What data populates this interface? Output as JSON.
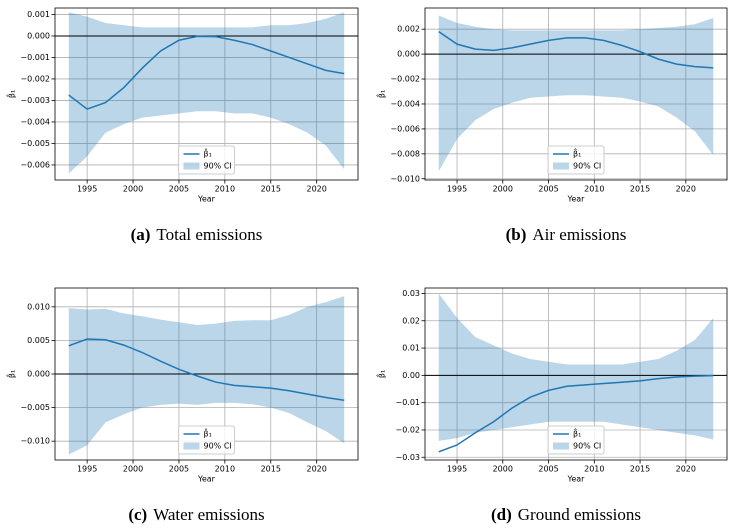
{
  "chart_data": [
    {
      "type": "line",
      "label": "(a)",
      "caption": "Total emissions",
      "xlabel": "Year",
      "ylabel": "β̂₁",
      "x": [
        1993,
        1995,
        1997,
        1999,
        2001,
        2003,
        2005,
        2007,
        2009,
        2011,
        2013,
        2015,
        2017,
        2019,
        2021,
        2023
      ],
      "xlim": [
        1991.5,
        2024.5
      ],
      "xticks": [
        1995,
        2000,
        2005,
        2010,
        2015,
        2020
      ],
      "ylim": [
        -0.0067,
        0.0013
      ],
      "yticks": [
        {
          "value": -0.006,
          "label": "−0.006"
        },
        {
          "value": -0.005,
          "label": "−0.005"
        },
        {
          "value": -0.004,
          "label": "−0.004"
        },
        {
          "value": -0.003,
          "label": "−0.003"
        },
        {
          "value": -0.002,
          "label": "−0.002"
        },
        {
          "value": -0.001,
          "label": "−0.001"
        },
        {
          "value": 0,
          "label": "0.000"
        },
        {
          "value": 0.001,
          "label": "0.001"
        }
      ],
      "grid": true,
      "reference_line": 0,
      "legend": "lower center",
      "series": [
        {
          "name": "β̂₁",
          "color": "#1f77b4",
          "values": [
            -0.00275,
            -0.0034,
            -0.0031,
            -0.0024,
            -0.0015,
            -0.0007,
            -0.0002,
            -2e-05,
            -3e-05,
            -0.0002,
            -0.0004,
            -0.0007,
            -0.001,
            -0.0013,
            -0.0016,
            -0.00175
          ]
        },
        {
          "name": "90% CI",
          "color": "#1f77b4",
          "type": "band",
          "upper": [
            0.0011,
            0.0009,
            0.0006,
            0.0005,
            0.0004,
            0.0004,
            0.0004,
            0.0004,
            0.0004,
            0.0004,
            0.0004,
            0.0005,
            0.0005,
            0.0006,
            0.0008,
            0.0011
          ],
          "lower": [
            -0.0064,
            -0.0056,
            -0.0045,
            -0.0041,
            -0.0038,
            -0.0037,
            -0.0036,
            -0.0035,
            -0.0035,
            -0.0036,
            -0.0036,
            -0.0038,
            -0.0041,
            -0.0045,
            -0.0051,
            -0.0062
          ]
        }
      ]
    },
    {
      "type": "line",
      "label": "(b)",
      "caption": "Air emissions",
      "xlabel": "Year",
      "ylabel": "β̂₁",
      "x": [
        1993,
        1995,
        1997,
        1999,
        2001,
        2003,
        2005,
        2007,
        2009,
        2011,
        2013,
        2015,
        2017,
        2019,
        2021,
        2023
      ],
      "xlim": [
        1991.5,
        2024.5
      ],
      "xticks": [
        1995,
        2000,
        2005,
        2010,
        2015,
        2020
      ],
      "ylim": [
        -0.0101,
        0.0037
      ],
      "yticks": [
        {
          "value": -0.01,
          "label": "−0.010"
        },
        {
          "value": -0.008,
          "label": "−0.008"
        },
        {
          "value": -0.006,
          "label": "−0.006"
        },
        {
          "value": -0.004,
          "label": "−0.004"
        },
        {
          "value": -0.002,
          "label": "−0.002"
        },
        {
          "value": 0,
          "label": "0.000"
        },
        {
          "value": 0.002,
          "label": "0.002"
        }
      ],
      "grid": true,
      "reference_line": 0,
      "legend": "lower center",
      "series": [
        {
          "name": "β̂₁",
          "color": "#1f77b4",
          "values": [
            0.0018,
            0.0008,
            0.0004,
            0.0003,
            0.0005,
            0.0008,
            0.0011,
            0.0013,
            0.0013,
            0.0011,
            0.0007,
            0.0002,
            -0.0004,
            -0.0008,
            -0.001,
            -0.0011
          ]
        },
        {
          "name": "90% CI",
          "color": "#1f77b4",
          "type": "band",
          "upper": [
            0.0031,
            0.0025,
            0.0022,
            0.002,
            0.0019,
            0.0019,
            0.0019,
            0.0019,
            0.0019,
            0.0019,
            0.0019,
            0.002,
            0.0021,
            0.0022,
            0.0024,
            0.0029
          ],
          "lower": [
            -0.0094,
            -0.0068,
            -0.0053,
            -0.0044,
            -0.0039,
            -0.0035,
            -0.0034,
            -0.0033,
            -0.0033,
            -0.0034,
            -0.0035,
            -0.0038,
            -0.0042,
            -0.0051,
            -0.0062,
            -0.0081
          ]
        }
      ]
    },
    {
      "type": "line",
      "label": "(c)",
      "caption": "Water emissions",
      "xlabel": "Year",
      "ylabel": "β̂₁",
      "x": [
        1993,
        1995,
        1997,
        1999,
        2001,
        2003,
        2005,
        2007,
        2009,
        2011,
        2013,
        2015,
        2017,
        2019,
        2021,
        2023
      ],
      "xlim": [
        1991.5,
        2024.5
      ],
      "xticks": [
        1995,
        2000,
        2005,
        2010,
        2015,
        2020
      ],
      "ylim": [
        -0.0128,
        0.0128
      ],
      "yticks": [
        {
          "value": -0.01,
          "label": "−0.010"
        },
        {
          "value": -0.005,
          "label": "−0.005"
        },
        {
          "value": 0,
          "label": "0.000"
        },
        {
          "value": 0.005,
          "label": "0.005"
        },
        {
          "value": 0.01,
          "label": "0.010"
        }
      ],
      "grid": true,
      "reference_line": 0,
      "legend": "lower center",
      "series": [
        {
          "name": "β̂₁",
          "color": "#1f77b4",
          "values": [
            0.0042,
            0.0052,
            0.0051,
            0.0043,
            0.0032,
            0.0019,
            0.0007,
            -0.0003,
            -0.0012,
            -0.0017,
            -0.0019,
            -0.0021,
            -0.0025,
            -0.003,
            -0.0035,
            -0.0039
          ]
        },
        {
          "name": "90% CI",
          "color": "#1f77b4",
          "type": "band",
          "upper": [
            0.0098,
            0.0096,
            0.0097,
            0.009,
            0.0086,
            0.0081,
            0.0077,
            0.0073,
            0.0075,
            0.0079,
            0.008,
            0.008,
            0.0088,
            0.01,
            0.0107,
            0.0116
          ],
          "lower": [
            -0.012,
            -0.0106,
            -0.0072,
            -0.006,
            -0.005,
            -0.0046,
            -0.0044,
            -0.0046,
            -0.0043,
            -0.0043,
            -0.0045,
            -0.005,
            -0.0058,
            -0.0072,
            -0.0085,
            -0.0103
          ]
        }
      ]
    },
    {
      "type": "line",
      "label": "(d)",
      "caption": "Ground emissions",
      "xlabel": "Year",
      "ylabel": "β̂₁",
      "x": [
        1993,
        1995,
        1997,
        1999,
        2001,
        2003,
        2005,
        2007,
        2009,
        2011,
        2013,
        2015,
        2017,
        2019,
        2021,
        2023
      ],
      "xlim": [
        1991.5,
        2024.5
      ],
      "xticks": [
        1995,
        2000,
        2005,
        2010,
        2015,
        2020
      ],
      "ylim": [
        -0.031,
        0.032
      ],
      "yticks": [
        {
          "value": -0.03,
          "label": "−0.03"
        },
        {
          "value": -0.02,
          "label": "−0.02"
        },
        {
          "value": -0.01,
          "label": "−0.01"
        },
        {
          "value": 0,
          "label": "0.00"
        },
        {
          "value": 0.01,
          "label": "0.01"
        },
        {
          "value": 0.02,
          "label": "0.02"
        },
        {
          "value": 0.03,
          "label": "0.03"
        }
      ],
      "grid": true,
      "reference_line": 0,
      "legend": "lower center",
      "series": [
        {
          "name": "β̂₁",
          "color": "#1f77b4",
          "values": [
            -0.028,
            -0.0255,
            -0.021,
            -0.017,
            -0.012,
            -0.008,
            -0.0055,
            -0.004,
            -0.0035,
            -0.003,
            -0.0025,
            -0.002,
            -0.0012,
            -0.0006,
            -0.0003,
            -0.0001
          ]
        },
        {
          "name": "90% CI",
          "color": "#1f77b4",
          "type": "band",
          "upper": [
            0.03,
            0.021,
            0.014,
            0.011,
            0.008,
            0.006,
            0.005,
            0.004,
            0.004,
            0.004,
            0.004,
            0.005,
            0.006,
            0.009,
            0.013,
            0.021
          ],
          "lower": [
            -0.024,
            -0.023,
            -0.021,
            -0.02,
            -0.019,
            -0.018,
            -0.017,
            -0.017,
            -0.017,
            -0.017,
            -0.018,
            -0.019,
            -0.02,
            -0.021,
            -0.022,
            -0.0235
          ]
        }
      ]
    }
  ]
}
